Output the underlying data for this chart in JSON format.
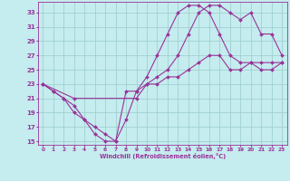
{
  "xlabel": "Windchill (Refroidissement éolien,°C)",
  "xlim": [
    -0.5,
    23.5
  ],
  "ylim": [
    14.5,
    34.5
  ],
  "xticks": [
    0,
    1,
    2,
    3,
    4,
    5,
    6,
    7,
    8,
    9,
    10,
    11,
    12,
    13,
    14,
    15,
    16,
    17,
    18,
    19,
    20,
    21,
    22,
    23
  ],
  "yticks": [
    15,
    17,
    19,
    21,
    23,
    25,
    27,
    29,
    31,
    33
  ],
  "bg_color": "#c5ecee",
  "line_color": "#993399",
  "grid_color": "#99cccc",
  "line1_x": [
    0,
    1,
    2,
    3,
    4,
    5,
    6,
    7,
    8,
    9,
    10,
    11,
    12,
    13,
    14,
    15,
    16,
    17,
    18,
    19,
    20,
    21,
    22,
    23
  ],
  "line1_y": [
    23,
    22,
    21,
    19,
    18,
    16,
    15,
    15,
    18,
    22,
    24,
    27,
    30,
    33,
    34,
    34,
    33,
    30,
    27,
    26,
    26,
    26,
    26,
    26
  ],
  "line2_x": [
    0,
    1,
    2,
    3,
    4,
    5,
    6,
    7,
    8,
    9,
    10,
    11,
    12,
    13,
    14,
    15,
    16,
    17,
    18,
    19,
    20,
    21,
    22,
    23
  ],
  "line2_y": [
    23,
    22,
    21,
    20,
    18,
    17,
    16,
    15,
    22,
    22,
    23,
    23,
    24,
    24,
    25,
    26,
    27,
    27,
    25,
    25,
    26,
    25,
    25,
    26
  ],
  "line3_x": [
    0,
    3,
    9,
    10,
    11,
    12,
    13,
    14,
    15,
    16,
    17,
    18,
    19,
    20,
    21,
    22,
    23
  ],
  "line3_y": [
    23,
    21,
    21,
    23,
    24,
    25,
    27,
    30,
    33,
    34,
    34,
    33,
    32,
    33,
    30,
    30,
    27
  ]
}
